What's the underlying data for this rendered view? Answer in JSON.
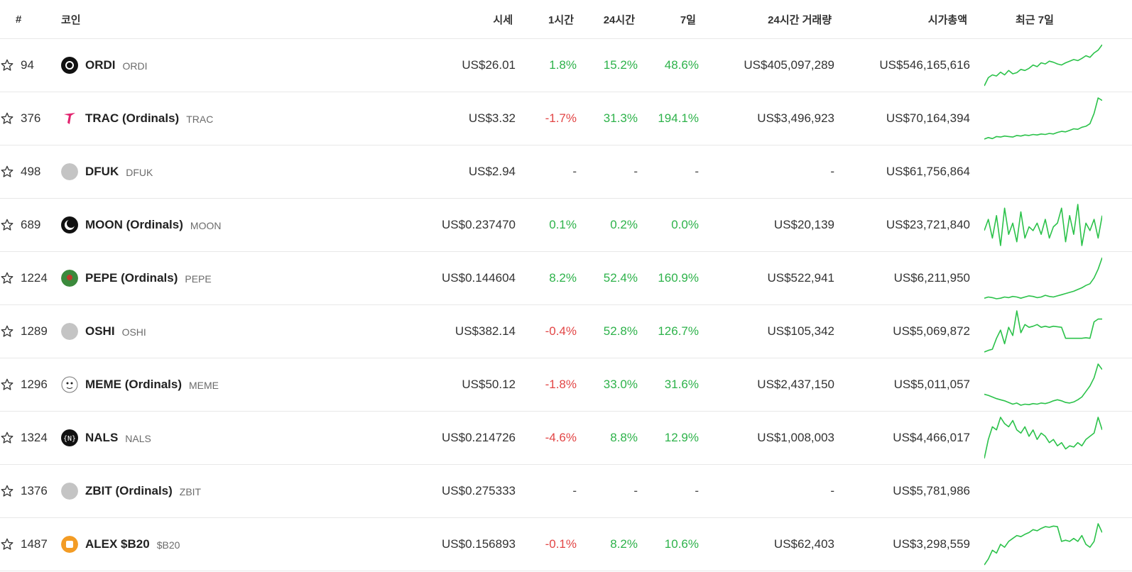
{
  "colors": {
    "positive": "#2db24a",
    "negative": "#e24545",
    "sparkline": "#2bc24a",
    "text": "#333333",
    "divider": "#e8e8e8"
  },
  "header": {
    "rank": "#",
    "coin": "코인",
    "price": "시세",
    "change_1h": "1시간",
    "change_24h": "24시간",
    "change_7d": "7일",
    "volume_24h": "24시간 거래량",
    "market_cap": "시가총액",
    "last_7d": "최근 7일"
  },
  "rows": [
    {
      "rank": "94",
      "name": "ORDI",
      "symbol": "ORDI",
      "icon": "ordi-logo-icon",
      "price": "US$26.01",
      "h1": "1.8%",
      "h24": "15.2%",
      "d7": "48.6%",
      "volume": "US$405,097,289",
      "mcap": "US$546,165,616",
      "trend": [
        10,
        25,
        30,
        28,
        35,
        30,
        38,
        32,
        34,
        40,
        38,
        42,
        48,
        45,
        52,
        50,
        55,
        53,
        50,
        48,
        52,
        55,
        58,
        56,
        60,
        65,
        62,
        70,
        75,
        85
      ]
    },
    {
      "rank": "376",
      "name": "TRAC (Ordinals)",
      "symbol": "TRAC",
      "icon": "trac-logo-icon",
      "price": "US$3.32",
      "h1": "-1.7%",
      "h24": "31.3%",
      "d7": "194.1%",
      "volume": "US$3,496,923",
      "mcap": "US$70,164,394",
      "trend": [
        5,
        8,
        6,
        10,
        9,
        11,
        10,
        9,
        12,
        11,
        13,
        12,
        14,
        13,
        15,
        14,
        16,
        15,
        18,
        20,
        19,
        22,
        25,
        24,
        28,
        30,
        35,
        55,
        85,
        80
      ]
    },
    {
      "rank": "498",
      "name": "DFUK",
      "symbol": "DFUK",
      "icon": "placeholder-coin-icon",
      "price": "US$2.94",
      "h1": "-",
      "h24": "-",
      "d7": "-",
      "volume": "-",
      "mcap": "US$61,756,864",
      "trend": []
    },
    {
      "rank": "689",
      "name": "MOON (Ordinals)",
      "symbol": "MOON",
      "icon": "moon-logo-icon",
      "price": "US$0.237470",
      "h1": "0.1%",
      "h24": "0.2%",
      "d7": "0.0%",
      "volume": "US$20,139",
      "mcap": "US$23,721,840",
      "trend": [
        50,
        65,
        40,
        70,
        30,
        80,
        45,
        60,
        35,
        75,
        40,
        55,
        50,
        60,
        45,
        65,
        40,
        55,
        60,
        80,
        35,
        70,
        45,
        85,
        30,
        60,
        50,
        65,
        40,
        70
      ]
    },
    {
      "rank": "1224",
      "name": "PEPE (Ordinals)",
      "symbol": "PEPE",
      "icon": "pepe-logo-icon",
      "price": "US$0.144604",
      "h1": "8.2%",
      "h24": "52.4%",
      "d7": "160.9%",
      "volume": "US$522,941",
      "mcap": "US$6,211,950",
      "trend": [
        10,
        12,
        11,
        9,
        10,
        12,
        11,
        13,
        12,
        10,
        12,
        14,
        13,
        11,
        12,
        15,
        13,
        12,
        14,
        16,
        18,
        20,
        22,
        25,
        28,
        32,
        35,
        45,
        60,
        80
      ]
    },
    {
      "rank": "1289",
      "name": "OSHI",
      "symbol": "OSHI",
      "icon": "placeholder-coin-icon",
      "price": "US$382.14",
      "h1": "-0.4%",
      "h24": "52.8%",
      "d7": "126.7%",
      "volume": "US$105,342",
      "mcap": "US$5,069,872",
      "trend": [
        5,
        8,
        10,
        30,
        45,
        20,
        50,
        35,
        80,
        40,
        55,
        50,
        52,
        55,
        50,
        52,
        50,
        52,
        51,
        50,
        30,
        30,
        30,
        30,
        30,
        31,
        30,
        60,
        65,
        65
      ]
    },
    {
      "rank": "1296",
      "name": "MEME (Ordinals)",
      "symbol": "MEME",
      "icon": "meme-logo-icon",
      "price": "US$50.12",
      "h1": "-1.8%",
      "h24": "33.0%",
      "d7": "31.6%",
      "volume": "US$2,437,150",
      "mcap": "US$5,011,057",
      "trend": [
        30,
        28,
        25,
        22,
        20,
        18,
        15,
        12,
        14,
        10,
        12,
        11,
        13,
        12,
        14,
        13,
        15,
        18,
        20,
        18,
        15,
        14,
        16,
        20,
        25,
        35,
        45,
        60,
        85,
        75
      ]
    },
    {
      "rank": "1324",
      "name": "NALS",
      "symbol": "NALS",
      "icon": "nals-logo-icon",
      "price": "US$0.214726",
      "h1": "-4.6%",
      "h24": "8.8%",
      "d7": "12.9%",
      "volume": "US$1,008,003",
      "mcap": "US$4,466,017",
      "trend": [
        10,
        40,
        60,
        55,
        75,
        65,
        60,
        70,
        55,
        50,
        60,
        45,
        55,
        40,
        50,
        45,
        35,
        40,
        30,
        35,
        25,
        30,
        28,
        35,
        30,
        40,
        45,
        50,
        75,
        55
      ]
    },
    {
      "rank": "1376",
      "name": "ZBIT (Ordinals)",
      "symbol": "ZBIT",
      "icon": "placeholder-coin-icon",
      "price": "US$0.275333",
      "h1": "-",
      "h24": "-",
      "d7": "-",
      "volume": "-",
      "mcap": "US$5,781,986",
      "trend": []
    },
    {
      "rank": "1487",
      "name": "ALEX $B20",
      "symbol": "$B20",
      "icon": "alex-logo-icon",
      "price": "US$0.156893",
      "h1": "-0.1%",
      "h24": "8.2%",
      "d7": "10.6%",
      "volume": "US$62,403",
      "mcap": "US$3,298,559",
      "trend": [
        10,
        20,
        35,
        30,
        45,
        40,
        50,
        55,
        60,
        58,
        62,
        65,
        70,
        68,
        72,
        75,
        74,
        76,
        75,
        50,
        52,
        50,
        55,
        50,
        60,
        45,
        40,
        50,
        80,
        65
      ]
    }
  ]
}
